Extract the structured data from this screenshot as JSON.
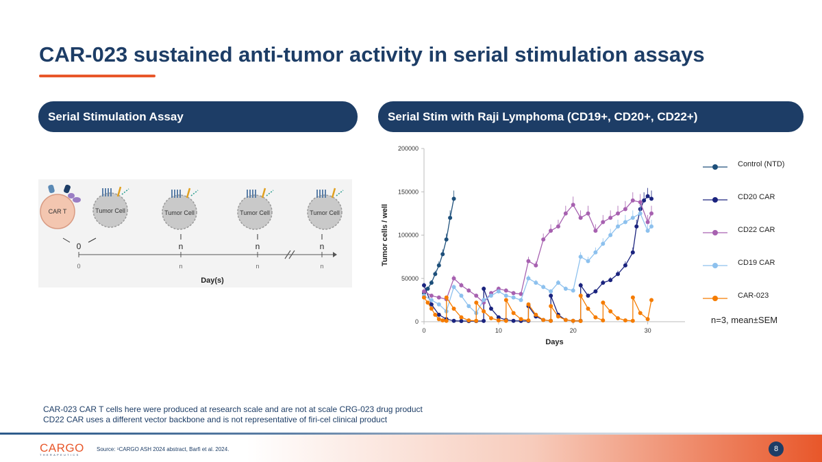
{
  "slide": {
    "title": "CAR-023 sustained anti-tumor activity in serial stimulation assays",
    "left_header": "Serial Stimulation Assay",
    "right_header": "Serial Stim with Raji Lymphoma (CD19+, CD20+, CD22+)",
    "notes": [
      "CAR-023 CAR T cells here were produced at research scale and are not at scale CRG-023 drug product",
      "CD22 CAR uses a different vector backbone and is not representative of firi-cel clinical product"
    ],
    "source": "Source: ¹CARGO ASH 2024 abstract, Barfi et al. 2024.",
    "page_number": "8",
    "logo": "CARGO",
    "logo_sub": "THERAPEUTICS"
  },
  "assay": {
    "car_t_label": "CAR T",
    "tumor_label": "Tumor Cell",
    "stim_top": [
      "0",
      "n",
      "n",
      "n"
    ],
    "stim_ticks": [
      "0",
      "n",
      "n",
      "n"
    ],
    "axis_label": "Day(s)"
  },
  "colors": {
    "navy": "#1d3d66",
    "orange": "#e8572a",
    "control": "#1d4f7a",
    "cd20": "#1a237e",
    "cd22": "#a761b0",
    "cd19": "#8dc1ee",
    "car023": "#f57c00"
  },
  "chart_data": {
    "type": "line",
    "title": "Serial Stim with Raji Lymphoma (CD19+, CD20+, CD22+)",
    "xlabel": "Days",
    "ylabel": "Tumor cells / well",
    "xlim": [
      0,
      35
    ],
    "ylim": [
      0,
      200000
    ],
    "xticks": [
      0,
      10,
      20,
      30
    ],
    "yticks": [
      0,
      50000,
      100000,
      150000,
      200000
    ],
    "annotation": "n=3, mean±SEM",
    "series": [
      {
        "name": "Control (NTD)",
        "color": "#1d4f7a",
        "x": [
          0,
          0.5,
          1,
          1.5,
          2,
          2.5,
          3,
          3.5,
          4
        ],
        "y": [
          33000,
          38000,
          45000,
          55000,
          65000,
          78000,
          95000,
          120000,
          142000
        ]
      },
      {
        "name": "CD20 CAR",
        "color": "#1a237e",
        "x": [
          0,
          1,
          2,
          3,
          4,
          5,
          6,
          7,
          8,
          8.01,
          9,
          10,
          11,
          12,
          13,
          14,
          14.01,
          15,
          16,
          17,
          17.01,
          18,
          19,
          20,
          21,
          21.01,
          22,
          23,
          24,
          25,
          26,
          27,
          28,
          28.5,
          29,
          29.5,
          30,
          30.5
        ],
        "y": [
          42000,
          20000,
          8000,
          3000,
          1000,
          800,
          700,
          700,
          900,
          38000,
          15000,
          5000,
          2000,
          1000,
          900,
          900,
          18000,
          6000,
          2000,
          1000,
          30000,
          8000,
          2000,
          1000,
          1000,
          42000,
          30000,
          35000,
          45000,
          48000,
          55000,
          65000,
          80000,
          110000,
          130000,
          140000,
          145000,
          142000
        ]
      },
      {
        "name": "CD22 CAR",
        "color": "#a761b0",
        "x": [
          0,
          1,
          2,
          3,
          4,
          5,
          6,
          7,
          8,
          9,
          10,
          11,
          12,
          13,
          14,
          15,
          16,
          17,
          18,
          19,
          20,
          21,
          22,
          23,
          24,
          25,
          26,
          27,
          28,
          29,
          30,
          30.5
        ],
        "y": [
          35000,
          30000,
          28000,
          26000,
          50000,
          42000,
          36000,
          30000,
          22000,
          33000,
          38000,
          36000,
          33000,
          32000,
          70000,
          65000,
          95000,
          105000,
          110000,
          125000,
          135000,
          120000,
          125000,
          105000,
          115000,
          120000,
          125000,
          130000,
          140000,
          138000,
          115000,
          125000
        ]
      },
      {
        "name": "CD19 CAR",
        "color": "#8dc1ee",
        "x": [
          0,
          1,
          2,
          3,
          4,
          5,
          6,
          7,
          8,
          9,
          10,
          11,
          12,
          13,
          14,
          15,
          16,
          17,
          18,
          19,
          20,
          21,
          22,
          23,
          24,
          25,
          26,
          27,
          28,
          29,
          30,
          30.5
        ],
        "y": [
          30000,
          25000,
          20000,
          12000,
          40000,
          30000,
          18000,
          10000,
          25000,
          30000,
          35000,
          30000,
          28000,
          25000,
          50000,
          45000,
          40000,
          35000,
          45000,
          38000,
          36000,
          75000,
          70000,
          80000,
          90000,
          100000,
          110000,
          115000,
          120000,
          125000,
          105000,
          110000
        ]
      },
      {
        "name": "CAR-023",
        "color": "#f57c00",
        "x": [
          0,
          0.5,
          1,
          1.5,
          2,
          2.5,
          3,
          3.01,
          4,
          5,
          6,
          7,
          7.01,
          8,
          9,
          10,
          11,
          11.01,
          12,
          13,
          14,
          14.01,
          15,
          16,
          17,
          17.01,
          18,
          19,
          20,
          21,
          21.01,
          22,
          23,
          24,
          24.01,
          25,
          26,
          27,
          28,
          28.01,
          29,
          30,
          30.5
        ],
        "y": [
          28000,
          22000,
          15000,
          8000,
          3000,
          1500,
          1000,
          28000,
          15000,
          5000,
          1500,
          1000,
          22000,
          12000,
          4000,
          1500,
          1000,
          25000,
          10000,
          3000,
          1500,
          20000,
          8000,
          2000,
          1000,
          18000,
          6000,
          2000,
          1000,
          800,
          30000,
          15000,
          5000,
          1500,
          22000,
          12000,
          4000,
          1500,
          1000,
          28000,
          10000,
          3000,
          25000
        ]
      }
    ]
  }
}
